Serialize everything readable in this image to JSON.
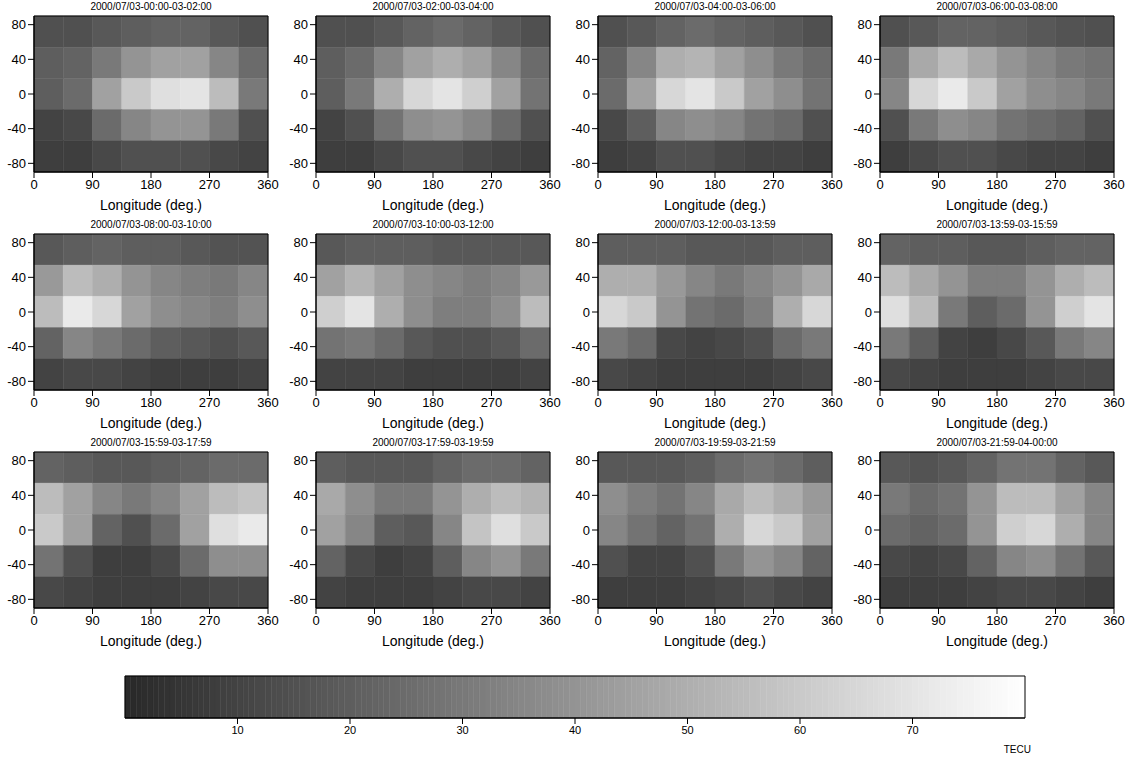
{
  "chart_data": {
    "type": "heatmap",
    "xlabel": "Longitude (deg.)",
    "xlim": [
      0,
      360
    ],
    "xticks": [
      0,
      90,
      180,
      270,
      360
    ],
    "ylim": [
      -90,
      90
    ],
    "yticks": [
      -80,
      -40,
      0,
      40,
      80
    ],
    "lon_edges": [
      0,
      45,
      90,
      135,
      180,
      225,
      270,
      315,
      360
    ],
    "lat_edges": [
      90,
      54,
      18,
      -18,
      -54,
      -90
    ],
    "panels": [
      {
        "title": "2000/07/03-00:00-03-02:00",
        "cells": [
          [
            15,
            15,
            18,
            20,
            22,
            22,
            18,
            15
          ],
          [
            20,
            22,
            30,
            40,
            45,
            45,
            35,
            25
          ],
          [
            20,
            25,
            45,
            60,
            68,
            70,
            55,
            30
          ],
          [
            10,
            12,
            25,
            35,
            40,
            40,
            30,
            15
          ],
          [
            8,
            8,
            12,
            15,
            15,
            15,
            12,
            10
          ]
        ]
      },
      {
        "title": "2000/07/03-02:00-03-04:00",
        "cells": [
          [
            15,
            15,
            18,
            22,
            25,
            22,
            18,
            15
          ],
          [
            20,
            25,
            35,
            45,
            50,
            45,
            35,
            25
          ],
          [
            20,
            30,
            50,
            65,
            70,
            62,
            45,
            28
          ],
          [
            10,
            15,
            28,
            38,
            40,
            35,
            25,
            15
          ],
          [
            8,
            8,
            12,
            15,
            15,
            12,
            10,
            8
          ]
        ]
      },
      {
        "title": "2000/07/03-04:00-03-06:00",
        "cells": [
          [
            15,
            18,
            22,
            25,
            22,
            20,
            18,
            15
          ],
          [
            22,
            35,
            50,
            52,
            45,
            38,
            30,
            25
          ],
          [
            25,
            45,
            65,
            70,
            60,
            45,
            38,
            28
          ],
          [
            12,
            20,
            35,
            38,
            35,
            28,
            25,
            15
          ],
          [
            8,
            10,
            15,
            15,
            12,
            10,
            10,
            8
          ]
        ]
      },
      {
        "title": "2000/07/03-06:00-03-08:00",
        "cells": [
          [
            15,
            18,
            22,
            22,
            20,
            18,
            16,
            15
          ],
          [
            30,
            48,
            55,
            48,
            40,
            35,
            30,
            28
          ],
          [
            35,
            65,
            72,
            60,
            45,
            38,
            35,
            30
          ],
          [
            15,
            30,
            38,
            35,
            28,
            25,
            22,
            15
          ],
          [
            8,
            12,
            15,
            15,
            12,
            10,
            10,
            8
          ]
        ]
      },
      {
        "title": "2000/07/03-08:00-03-10:00",
        "cells": [
          [
            18,
            20,
            22,
            20,
            20,
            18,
            16,
            16
          ],
          [
            42,
            55,
            50,
            40,
            35,
            32,
            30,
            35
          ],
          [
            55,
            72,
            65,
            45,
            38,
            35,
            32,
            38
          ],
          [
            22,
            35,
            30,
            25,
            20,
            18,
            15,
            18
          ],
          [
            10,
            12,
            12,
            10,
            8,
            8,
            8,
            10
          ]
        ]
      },
      {
        "title": "2000/07/03-10:00-03-12:00",
        "cells": [
          [
            18,
            20,
            20,
            20,
            18,
            18,
            18,
            18
          ],
          [
            45,
            52,
            45,
            38,
            35,
            32,
            35,
            42
          ],
          [
            62,
            70,
            50,
            38,
            32,
            32,
            38,
            55
          ],
          [
            28,
            30,
            25,
            18,
            15,
            15,
            18,
            25
          ],
          [
            10,
            10,
            10,
            8,
            8,
            8,
            8,
            10
          ]
        ]
      },
      {
        "title": "2000/07/03-12:00-03-13:59",
        "cells": [
          [
            20,
            20,
            20,
            18,
            18,
            18,
            20,
            20
          ],
          [
            50,
            50,
            42,
            35,
            30,
            35,
            40,
            48
          ],
          [
            65,
            60,
            40,
            28,
            25,
            32,
            50,
            65
          ],
          [
            30,
            25,
            12,
            10,
            12,
            15,
            25,
            30
          ],
          [
            12,
            10,
            8,
            8,
            8,
            8,
            10,
            12
          ]
        ]
      },
      {
        "title": "2000/07/03-13:59-03-15:59",
        "cells": [
          [
            22,
            20,
            20,
            18,
            18,
            20,
            22,
            22
          ],
          [
            55,
            48,
            40,
            32,
            32,
            40,
            50,
            55
          ],
          [
            68,
            55,
            30,
            20,
            25,
            40,
            62,
            70
          ],
          [
            30,
            20,
            10,
            8,
            12,
            18,
            30,
            35
          ],
          [
            12,
            10,
            8,
            8,
            8,
            10,
            12,
            12
          ]
        ]
      },
      {
        "title": "2000/07/03-15:59-03-17:59",
        "cells": [
          [
            22,
            20,
            18,
            18,
            20,
            22,
            25,
            25
          ],
          [
            55,
            45,
            35,
            30,
            35,
            45,
            55,
            58
          ],
          [
            60,
            45,
            22,
            15,
            25,
            45,
            68,
            72
          ],
          [
            28,
            15,
            8,
            8,
            12,
            25,
            38,
            38
          ],
          [
            12,
            10,
            8,
            8,
            8,
            10,
            12,
            12
          ]
        ]
      },
      {
        "title": "2000/07/03-17:59-03-19:59",
        "cells": [
          [
            20,
            18,
            18,
            18,
            22,
            25,
            25,
            22
          ],
          [
            48,
            38,
            30,
            30,
            40,
            50,
            55,
            52
          ],
          [
            45,
            35,
            20,
            18,
            35,
            58,
            68,
            60
          ],
          [
            22,
            12,
            8,
            10,
            20,
            35,
            40,
            30
          ],
          [
            10,
            8,
            8,
            8,
            10,
            12,
            12,
            10
          ]
        ]
      },
      {
        "title": "2000/07/03-19:59-03-21:59",
        "cells": [
          [
            18,
            18,
            18,
            20,
            25,
            28,
            25,
            20
          ],
          [
            38,
            32,
            28,
            35,
            48,
            55,
            50,
            42
          ],
          [
            35,
            28,
            22,
            28,
            50,
            65,
            60,
            45
          ],
          [
            15,
            10,
            10,
            15,
            30,
            40,
            35,
            22
          ],
          [
            8,
            8,
            8,
            10,
            12,
            15,
            12,
            10
          ]
        ]
      },
      {
        "title": "2000/07/03-21:59-04-00:00",
        "cells": [
          [
            18,
            16,
            18,
            22,
            28,
            28,
            22,
            18
          ],
          [
            30,
            25,
            28,
            40,
            55,
            55,
            45,
            35
          ],
          [
            25,
            22,
            25,
            40,
            62,
            65,
            50,
            35
          ],
          [
            12,
            10,
            12,
            22,
            35,
            38,
            28,
            18
          ],
          [
            8,
            8,
            8,
            10,
            12,
            12,
            10,
            8
          ]
        ]
      }
    ],
    "colorbar": {
      "range": [
        0,
        80
      ],
      "ticks": [
        10,
        20,
        30,
        40,
        50,
        60,
        70
      ],
      "label": "TECU"
    }
  }
}
